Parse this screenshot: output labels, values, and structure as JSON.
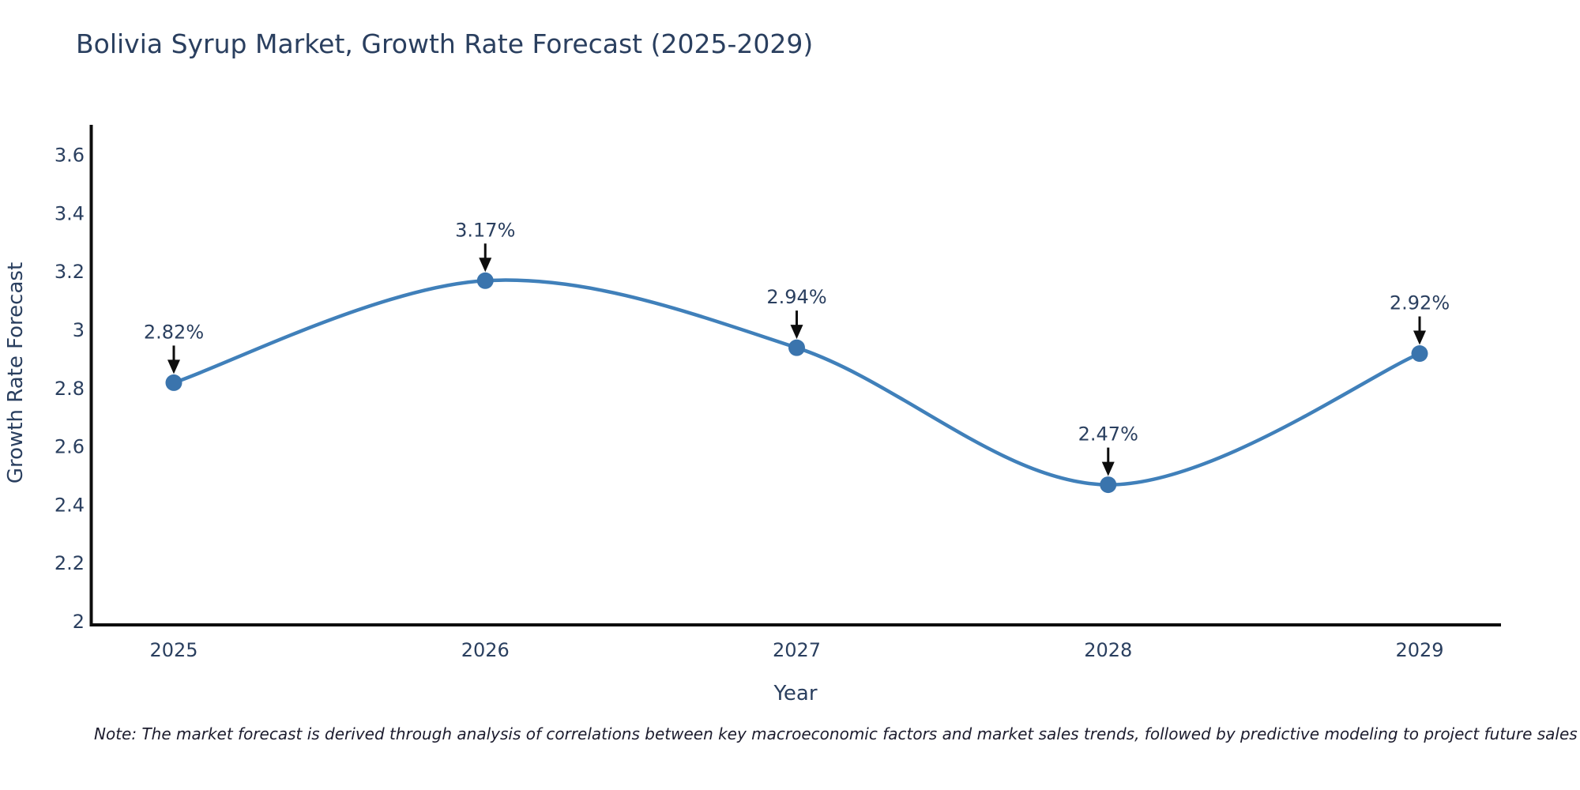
{
  "chart_data": {
    "type": "line",
    "line_shape": "spline",
    "title": "Bolivia Syrup Market, Growth Rate Forecast (2025-2029)",
    "xlabel": "Year",
    "ylabel": "Growth Rate Forecast",
    "x": [
      2025,
      2026,
      2027,
      2028,
      2029
    ],
    "y": [
      2.82,
      3.17,
      2.94,
      2.47,
      2.92
    ],
    "point_labels": [
      "2.82%",
      "3.17%",
      "2.94%",
      "2.47%",
      "2.92%"
    ],
    "xtick_labels": [
      "2025",
      "2026",
      "2027",
      "2028",
      "2029"
    ],
    "ytick_values": [
      2,
      2.2,
      2.4,
      2.6,
      2.8,
      3,
      3.2,
      3.4,
      3.6
    ],
    "ytick_labels": [
      "2",
      "2.2",
      "2.4",
      "2.6",
      "2.8",
      "3",
      "3.2",
      "3.4",
      "3.6"
    ],
    "ylim": [
      2,
      3.6
    ],
    "grid": false,
    "legend": "none",
    "markers": true,
    "annotations_have_arrows": true,
    "colors": {
      "line": "#4080ba",
      "marker": "#3a74ad",
      "text": "#2a3f5f",
      "axis_line": "#0d0d0d",
      "arrow": "#0d0d0d",
      "background": "#ffffff"
    }
  },
  "note": "Note: The market forecast is derived through analysis of correlations between key macroeconomic factors and market sales trends, followed by predictive modeling to project future sales"
}
